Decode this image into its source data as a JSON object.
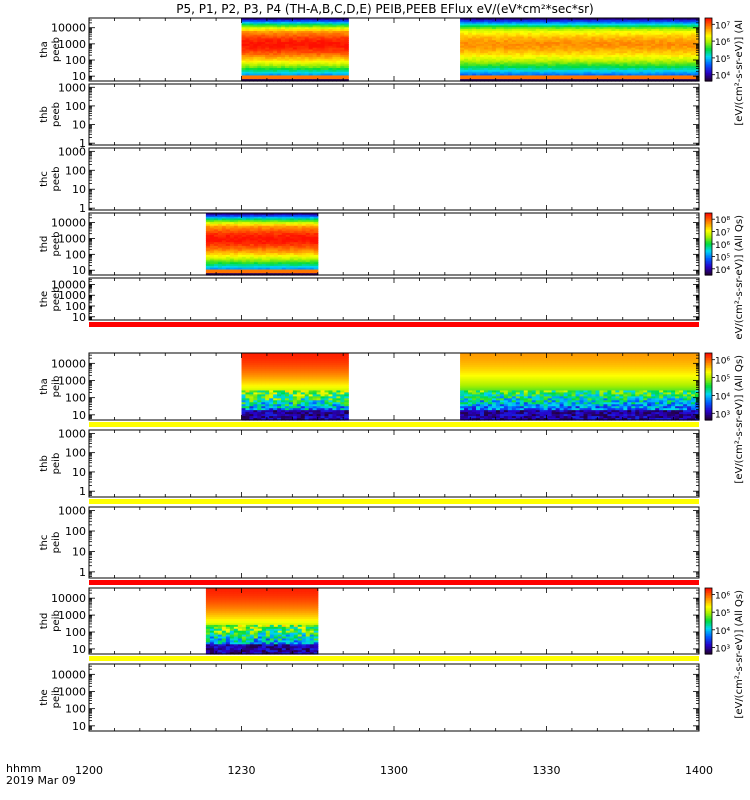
{
  "title": "P5, P1, P2, P3, P4 (TH-A,B,C,D,E) PEIB,PEEB EFlux eV/(eV*cm²*sec*sr)",
  "time_axis": {
    "label_line1": "hhmm",
    "label_line2": "2019 Mar 09",
    "ticks": [
      "1200",
      "1230",
      "1300",
      "1330",
      "1400"
    ],
    "range_minutes": [
      0,
      120
    ],
    "tick_minutes": [
      0,
      30,
      60,
      90,
      120
    ]
  },
  "colorbar_labels": {
    "electron_a": "[eV/(cm²-s-sr-eV)] (Al",
    "electron_d": "eV/(cm²-s-sr-eV)] (All Qs)",
    "ion": "[eV/(cm²-s-sr-eV)] (All Qs)"
  },
  "chart_data": {
    "type": "heatmap",
    "x_unit": "minutes after 12:00 UT",
    "y_scale": "log",
    "panels": [
      {
        "id": "tha_peeb",
        "line1": "tha",
        "line2": "peeb",
        "yticks": [
          "10000",
          "1000",
          "100",
          "10"
        ],
        "ylim": [
          5,
          40000
        ],
        "intervals": [
          [
            30,
            51
          ],
          [
            73,
            120
          ]
        ],
        "intensity": [
          1,
          0.85
        ],
        "noise": 0.05,
        "low_band": 0.06,
        "lowcut": 0.04,
        "cmap": "electron",
        "colorbar": {
          "ticks": [
            "10⁷",
            "10⁶",
            "10⁵",
            "10⁴"
          ],
          "label": "electron_a"
        }
      },
      {
        "id": "thb_peeb",
        "line1": "thb",
        "line2": "peeb",
        "yticks": [
          "1000",
          "100",
          "10",
          "1"
        ],
        "ylim": [
          0.8,
          1500
        ],
        "intervals": []
      },
      {
        "id": "thc_peeb",
        "line1": "thc",
        "line2": "peeb",
        "yticks": [
          "1000",
          "100",
          "10",
          "1"
        ],
        "ylim": [
          0.8,
          1500
        ],
        "intervals": []
      },
      {
        "id": "thd_peeb",
        "line1": "thd",
        "line2": "peeb",
        "yticks": [
          "10000",
          "1000",
          "100",
          "10"
        ],
        "ylim": [
          5,
          40000
        ],
        "intervals": [
          [
            23,
            45
          ]
        ],
        "intensity": [
          1
        ],
        "noise": 0.05,
        "low_band": 0.03,
        "lowcut": 0.03,
        "cmap": "electron",
        "colorbar": {
          "ticks": [
            "10⁸",
            "10⁷",
            "10⁶",
            "10⁵",
            "10⁴"
          ],
          "label": "electron_d"
        }
      },
      {
        "id": "the_peeb",
        "line1": "the",
        "line2": "peeb",
        "yticks": [
          "10000",
          "1000",
          "100",
          "10"
        ],
        "ylim": [
          5,
          40000
        ],
        "intervals": [],
        "flag_bar_below": "#ff0000"
      },
      {
        "id": "tha_peib",
        "line1": "tha",
        "line2": "peib",
        "yticks": [
          "10000",
          "1000",
          "100",
          "10"
        ],
        "ylim": [
          5,
          40000
        ],
        "intervals": [
          [
            30,
            51
          ],
          [
            73,
            120
          ]
        ],
        "intensity": [
          1,
          0.85
        ],
        "noise": 0.35,
        "low_band": 0.35,
        "lowcut": 0.0,
        "cmap": "ion",
        "colorbar": {
          "ticks": [
            "10⁶",
            "10⁵",
            "10⁴",
            "10³"
          ],
          "label": "ion"
        },
        "flag_bar_below": "#ffff00"
      },
      {
        "id": "thb_peib",
        "line1": "thb",
        "line2": "peib",
        "yticks": [
          "1000",
          "100",
          "10",
          "1"
        ],
        "ylim": [
          0.5,
          1500
        ],
        "intervals": [],
        "flag_bar_below": "#ffff00"
      },
      {
        "id": "thc_peib",
        "line1": "thc",
        "line2": "peib",
        "yticks": [
          "1000",
          "100",
          "10",
          "1"
        ],
        "ylim": [
          0.5,
          1500
        ],
        "intervals": [],
        "flag_bar_below": "#ff0000"
      },
      {
        "id": "thd_peib",
        "line1": "thd",
        "line2": "peib",
        "yticks": [
          "10000",
          "1000",
          "100",
          "10"
        ],
        "ylim": [
          5,
          40000
        ],
        "intervals": [
          [
            23,
            45
          ]
        ],
        "intensity": [
          1
        ],
        "noise": 0.35,
        "low_band": 0.35,
        "lowcut": 0.0,
        "cmap": "ion",
        "colorbar": {
          "ticks": [
            "10⁶",
            "10⁵",
            "10⁴",
            "10³"
          ],
          "label": "ion"
        },
        "flag_bar_below": "#ffff00"
      },
      {
        "id": "the_peib",
        "line1": "the",
        "line2": "peib",
        "yticks": [
          "10000",
          "1000",
          "100",
          "10"
        ],
        "ylim": [
          5,
          40000
        ],
        "intervals": []
      }
    ]
  }
}
